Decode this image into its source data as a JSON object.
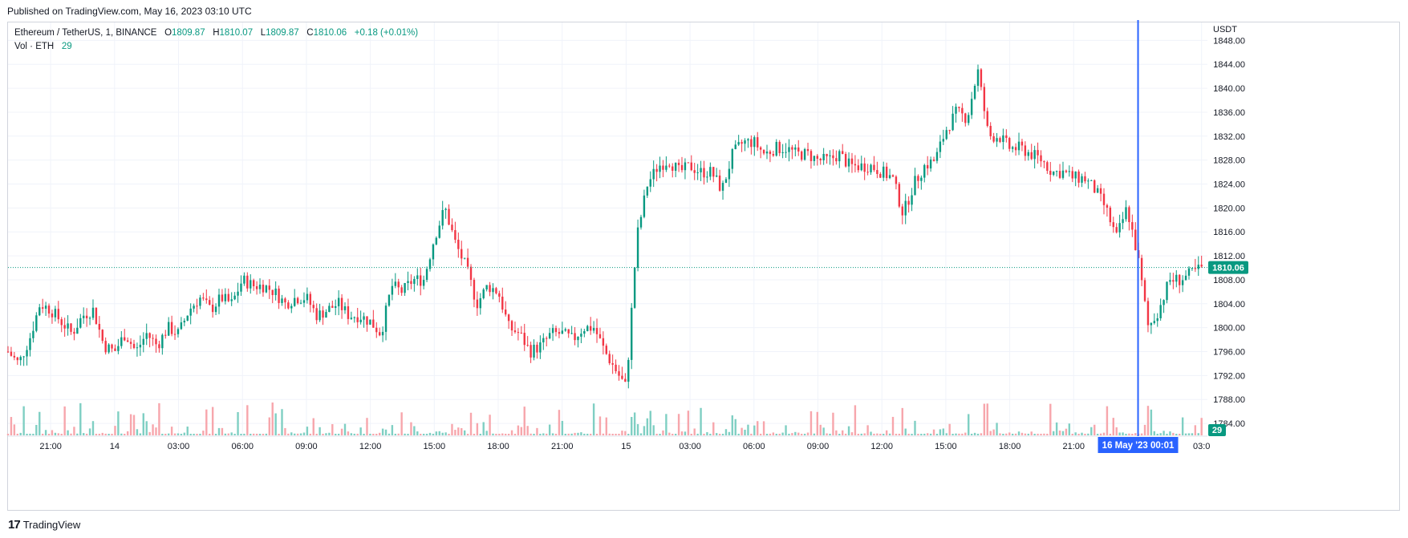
{
  "header": {
    "published": "Published on TradingView.com, May 16, 2023 03:10 UTC"
  },
  "legend": {
    "symbol": "Ethereum / TetherUS, 1, BINANCE",
    "open_label": "O",
    "open": "1809.87",
    "high_label": "H",
    "high": "1810.07",
    "low_label": "L",
    "low": "1809.87",
    "close_label": "C",
    "close": "1810.06",
    "change": "+0.18 (+0.01%)",
    "vol_label": "Vol · ETH",
    "vol_value": "29"
  },
  "footer": {
    "brand": "TradingView",
    "logo": "17"
  },
  "colors": {
    "up": "#089981",
    "down": "#f23645",
    "vol_up": "#7fcfc3",
    "vol_down": "#f7a6ac",
    "grid": "#f0f3fa",
    "crosshair": "#2962ff",
    "axis_text": "#131722"
  },
  "chart_data": {
    "type": "line",
    "title": "Ethereum / TetherUS, 1, BINANCE",
    "ylabel": "USDT",
    "xlabel": "",
    "ylim": [
      1782,
      1851
    ],
    "yticks": [
      "1784.00",
      "1788.00",
      "1792.00",
      "1796.00",
      "1800.00",
      "1804.00",
      "1808.00",
      "1812.00",
      "1816.00",
      "1820.00",
      "1824.00",
      "1828.00",
      "1832.00",
      "1836.00",
      "1840.00",
      "1844.00",
      "1848.00"
    ],
    "ytick_values": [
      1784,
      1788,
      1792,
      1796,
      1800,
      1804,
      1808,
      1812,
      1816,
      1820,
      1824,
      1828,
      1832,
      1836,
      1840,
      1844,
      1848
    ],
    "xticks": [
      "21:00",
      "14",
      "03:00",
      "06:00",
      "09:00",
      "12:00",
      "15:00",
      "18:00",
      "21:00",
      "15",
      "03:00",
      "06:00",
      "09:00",
      "12:00",
      "15:00",
      "18:00",
      "21:00",
      "03:0"
    ],
    "xtick_hours": [
      21,
      24,
      27,
      30,
      33,
      36,
      39,
      42,
      45,
      48,
      51,
      54,
      57,
      60,
      63,
      66,
      69,
      75
    ],
    "last_price": "1810.06",
    "last_price_value": 1810.06,
    "last_volume": "29",
    "crosshair_label": "16 May '23   00:01",
    "crosshair_hour": 72.02,
    "grid": true,
    "series": [
      {
        "name": "Ethereum / TetherUS",
        "x_hours": [
          19.0,
          19.5,
          20.0,
          20.5,
          21.0,
          21.5,
          22.0,
          22.5,
          23.0,
          23.5,
          24.0,
          24.5,
          25.0,
          25.5,
          26.0,
          26.5,
          27.0,
          27.5,
          28.0,
          28.5,
          29.0,
          29.5,
          30.0,
          30.5,
          31.0,
          31.5,
          32.0,
          32.5,
          33.0,
          33.5,
          34.0,
          34.5,
          35.0,
          35.5,
          36.0,
          36.5,
          37.0,
          37.5,
          38.0,
          38.5,
          39.0,
          39.5,
          40.0,
          40.5,
          41.0,
          41.5,
          42.0,
          42.5,
          43.0,
          43.5,
          44.0,
          44.5,
          45.0,
          45.5,
          46.0,
          46.5,
          47.0,
          47.5,
          48.0,
          48.5,
          49.0,
          49.5,
          50.0,
          50.5,
          51.0,
          51.5,
          52.0,
          52.5,
          53.0,
          53.5,
          54.0,
          54.5,
          55.0,
          55.5,
          56.0,
          56.5,
          57.0,
          57.5,
          58.0,
          58.5,
          59.0,
          59.5,
          60.0,
          60.5,
          61.0,
          61.5,
          62.0,
          62.5,
          63.0,
          63.5,
          64.0,
          64.5,
          65.0,
          65.5,
          66.0,
          66.5,
          67.0,
          67.5,
          68.0,
          68.5,
          69.0,
          69.5,
          70.0,
          70.5,
          71.0,
          71.5,
          72.0,
          72.5,
          73.0,
          73.5,
          74.0,
          74.5,
          75.0
        ],
        "values": [
          1796,
          1794,
          1798,
          1804,
          1803,
          1801,
          1799,
          1802,
          1803,
          1797,
          1796,
          1799,
          1796,
          1799,
          1797,
          1800,
          1799,
          1803,
          1805,
          1803,
          1805,
          1804,
          1808,
          1807,
          1807,
          1806,
          1804,
          1805,
          1805,
          1802,
          1803,
          1804,
          1802,
          1802,
          1801,
          1799,
          1807,
          1806,
          1808,
          1808,
          1815,
          1820,
          1814,
          1810,
          1804,
          1807,
          1806,
          1800,
          1799,
          1796,
          1797,
          1799,
          1799,
          1798,
          1800,
          1800,
          1796,
          1793,
          1790,
          1815,
          1824,
          1827,
          1828,
          1826,
          1827,
          1826,
          1826,
          1823,
          1829,
          1831,
          1831,
          1829,
          1830,
          1830,
          1829,
          1829,
          1828,
          1828,
          1829,
          1827,
          1827,
          1827,
          1826,
          1825,
          1819,
          1824,
          1827,
          1828,
          1833,
          1836,
          1835,
          1843,
          1832,
          1832,
          1830,
          1830,
          1829,
          1828,
          1826,
          1826,
          1825,
          1825,
          1823,
          1820,
          1815,
          1820,
          1812,
          1800,
          1803,
          1808,
          1808,
          1809,
          1810
        ]
      }
    ]
  }
}
